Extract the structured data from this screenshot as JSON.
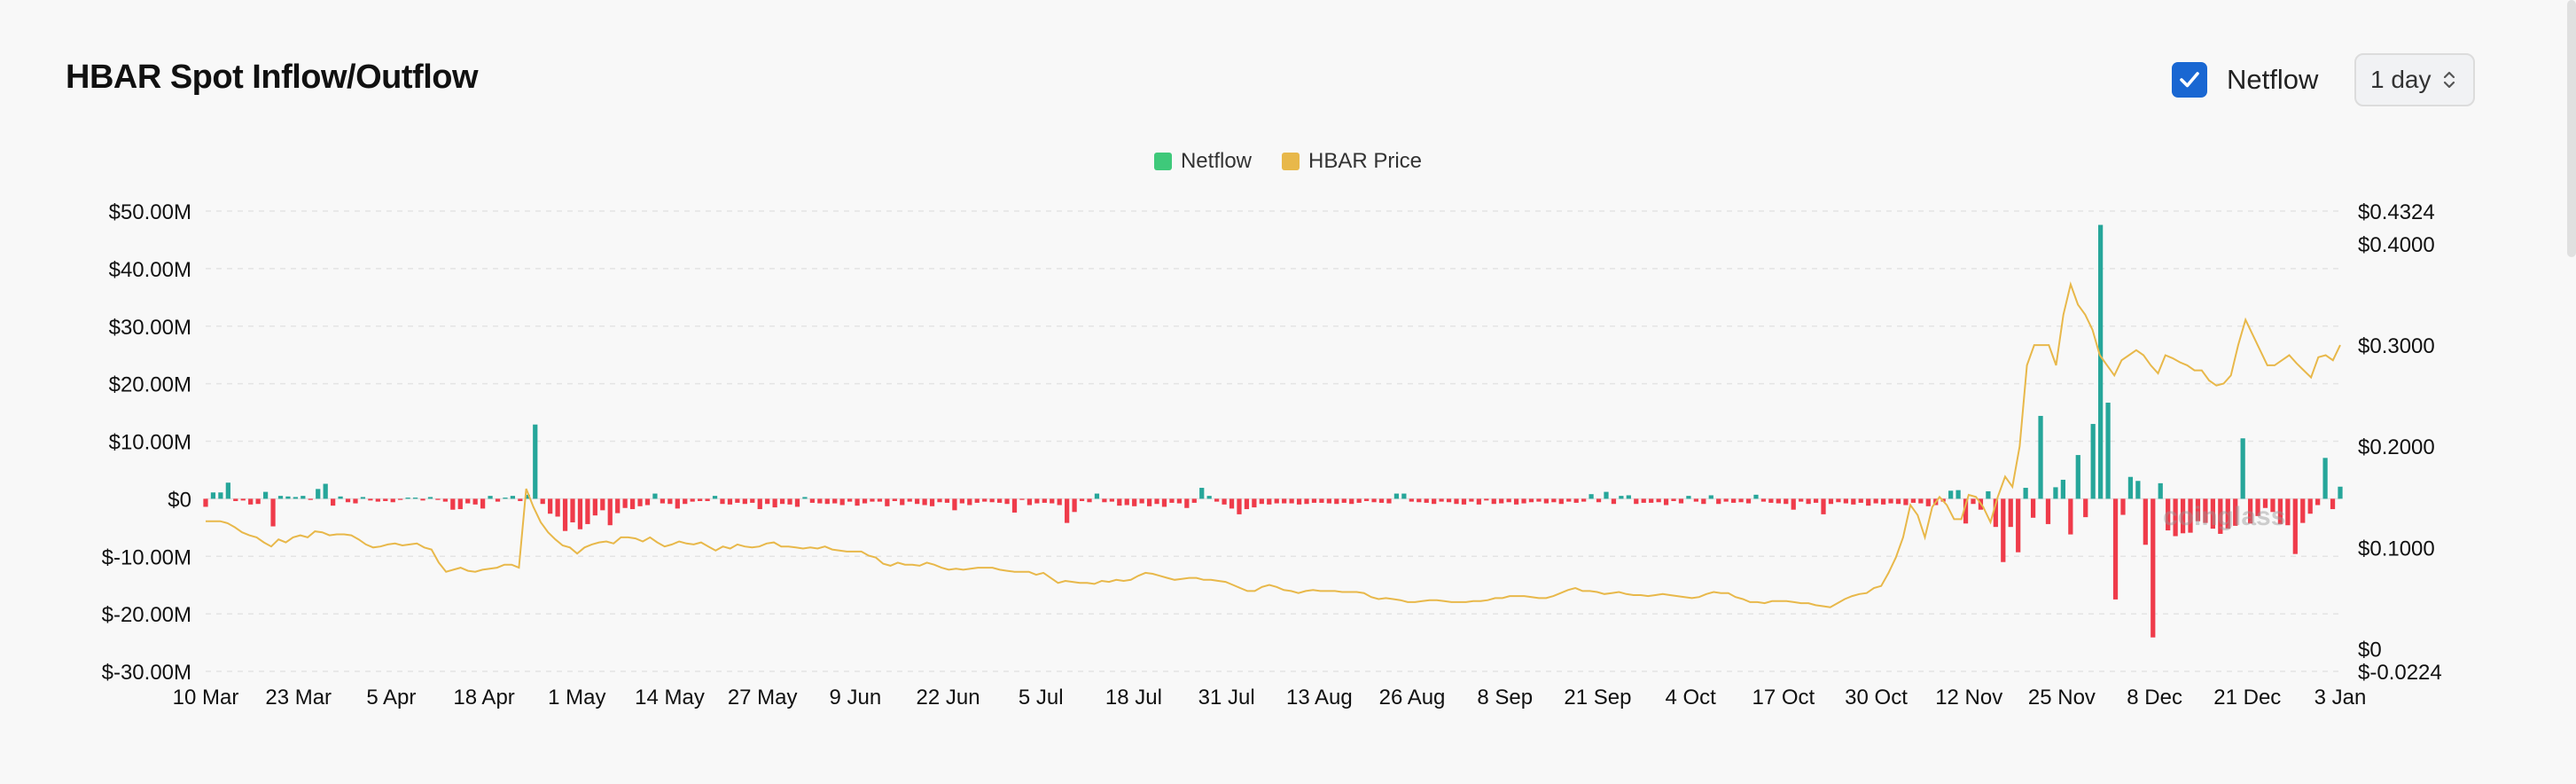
{
  "header": {
    "title": "HBAR Spot Inflow/Outflow",
    "netflow_toggle_label": "Netflow",
    "netflow_checked": true,
    "interval_value": "1 day"
  },
  "watermark": "coinglass",
  "colors": {
    "inflow": "#26a69a",
    "outflow": "#ef3b4a",
    "price_line": "#e8b84a",
    "netflow_legend": "#3ec97a",
    "price_legend": "#e8b84a"
  },
  "chart_data": {
    "type": "bar",
    "legend": [
      "Netflow",
      "HBAR Price"
    ],
    "x_tick_labels": [
      "10 Mar",
      "23 Mar",
      "5 Apr",
      "18 Apr",
      "1 May",
      "14 May",
      "27 May",
      "9 Jun",
      "22 Jun",
      "5 Jul",
      "18 Jul",
      "31 Jul",
      "13 Aug",
      "26 Aug",
      "8 Sep",
      "21 Sep",
      "4 Oct",
      "17 Oct",
      "30 Oct",
      "12 Nov",
      "25 Nov",
      "8 Dec",
      "21 Dec",
      "3 Jan"
    ],
    "y_left_tick_labels": [
      "$50.00M",
      "$40.00M",
      "$30.00M",
      "$20.00M",
      "$10.00M",
      "$0",
      "$-10.00M",
      "$-20.00M",
      "$-30.00M"
    ],
    "y_left_ticks": [
      50,
      40,
      30,
      20,
      10,
      0,
      -10,
      -20,
      -30
    ],
    "y_left_range": [
      -30,
      50
    ],
    "y_right_tick_labels": [
      "$0.4324",
      "$0.4000",
      "$0.3000",
      "$0.2000",
      "$0.1000",
      "$0",
      "$-0.0224"
    ],
    "y_right_ticks": [
      0.4324,
      0.4,
      0.3,
      0.2,
      0.1,
      0,
      -0.0224
    ],
    "y_right_range": [
      -0.0224,
      0.4324
    ],
    "series": [
      {
        "name": "Netflow",
        "units": "USD millions",
        "x_start_label": "10 Mar",
        "x_end_label": "3 Jan",
        "values": [
          -1.4,
          1.1,
          1.1,
          2.8,
          -0.4,
          -0.3,
          -1.0,
          -0.9,
          1.2,
          -4.8,
          0.5,
          0.4,
          0.3,
          0.5,
          -0.2,
          1.7,
          2.6,
          -1.2,
          0.4,
          -0.6,
          -0.8,
          0.3,
          -0.3,
          -0.5,
          -0.4,
          -0.6,
          -0.2,
          0.2,
          0.2,
          -0.3,
          0.3,
          -0.2,
          -0.5,
          -1.9,
          -1.8,
          -0.8,
          -1.0,
          -1.7,
          0.5,
          -0.5,
          0.2,
          0.5,
          -0.4,
          0.7,
          12.9,
          -0.9,
          -2.6,
          -3.1,
          -5.6,
          -4.1,
          -5.3,
          -4.4,
          -2.9,
          -2.0,
          -4.6,
          -2.5,
          -1.6,
          -1.8,
          -1.3,
          -1.1,
          0.9,
          -0.8,
          -0.9,
          -1.7,
          -0.9,
          -0.5,
          -0.4,
          -0.4,
          0.5,
          -0.9,
          -1.0,
          -0.7,
          -0.9,
          -0.7,
          -1.8,
          -0.9,
          -1.5,
          -0.9,
          -1.0,
          -1.4,
          0.3,
          -0.7,
          -0.8,
          -0.9,
          -0.8,
          -1.1,
          -0.5,
          -1.2,
          -0.8,
          -0.5,
          -0.5,
          -1.3,
          -0.4,
          -1.1,
          -0.5,
          -0.9,
          -1.1,
          -1.3,
          -0.6,
          -0.7,
          -2.0,
          -0.8,
          -1.1,
          -0.7,
          -0.5,
          -0.6,
          -0.7,
          -0.9,
          -2.4,
          -0.2,
          -1.1,
          -0.8,
          -0.7,
          -0.8,
          -1.1,
          -4.2,
          -2.3,
          -0.4,
          -0.6,
          0.9,
          -0.6,
          -0.5,
          -1.2,
          -1.1,
          -1.3,
          -0.8,
          -1.3,
          -0.9,
          -1.4,
          -0.7,
          -0.8,
          -1.6,
          -0.7,
          1.9,
          0.5,
          -0.5,
          -1.0,
          -1.7,
          -2.7,
          -1.8,
          -1.5,
          -0.9,
          -1.0,
          -0.8,
          -0.8,
          -0.8,
          -1.0,
          -0.9,
          -0.7,
          -0.7,
          -0.8,
          -0.9,
          -0.7,
          -0.9,
          -0.7,
          -0.4,
          -0.6,
          -0.7,
          -0.8,
          0.9,
          0.9,
          -0.5,
          -0.6,
          -0.7,
          -0.9,
          -0.5,
          -0.6,
          -0.9,
          -1.0,
          -0.5,
          -1.0,
          -0.3,
          -0.9,
          -0.8,
          -0.6,
          -1.0,
          -0.8,
          -0.6,
          -0.5,
          -0.8,
          -0.6,
          -0.9,
          -0.5,
          -0.7,
          -0.5,
          0.8,
          -0.6,
          1.2,
          -0.9,
          0.5,
          0.6,
          -0.9,
          -0.7,
          -0.7,
          -0.6,
          -1.1,
          -0.4,
          -0.8,
          0.5,
          -0.5,
          -0.9,
          0.6,
          -0.9,
          -0.5,
          -0.7,
          -0.6,
          -0.8,
          0.7,
          -0.5,
          -0.7,
          -0.8,
          -0.9,
          -1.9,
          -0.5,
          -0.9,
          -0.7,
          -2.7,
          -0.9,
          -0.6,
          -0.8,
          -1.0,
          -0.7,
          -1.2,
          -0.8,
          -1.0,
          -0.8,
          -0.9,
          -1.1,
          -0.7,
          -0.8,
          -1.3,
          -1.1,
          -0.5,
          1.4,
          1.5,
          -4.3,
          -0.9,
          -1.9,
          1.3,
          -4.9,
          -11.0,
          -4.9,
          -9.3,
          1.9,
          -3.3,
          14.4,
          -4.4,
          2.0,
          3.3,
          -6.2,
          7.6,
          -3.2,
          13.0,
          47.6,
          16.7,
          -17.5,
          -2.8,
          3.8,
          3.1,
          -8.0,
          -24.1,
          2.7,
          -5.5,
          -6.5,
          -6.0,
          -5.9,
          -3.9,
          -4.2,
          -5.2,
          -6.1,
          -5.2,
          -4.7,
          10.5,
          -4.3,
          -3.0,
          -1.6,
          -2.3,
          -4.4,
          -4.6,
          -9.6,
          -4.2,
          -2.6,
          -1.1,
          7.1,
          -1.8,
          2.1
        ]
      },
      {
        "name": "HBAR Price",
        "units": "USD",
        "x_start_label": "10 Mar",
        "x_end_label": "3 Jan",
        "values": [
          0.126,
          0.126,
          0.126,
          0.124,
          0.12,
          0.115,
          0.112,
          0.11,
          0.105,
          0.101,
          0.108,
          0.105,
          0.11,
          0.112,
          0.11,
          0.116,
          0.115,
          0.112,
          0.113,
          0.113,
          0.112,
          0.108,
          0.103,
          0.1,
          0.101,
          0.103,
          0.104,
          0.102,
          0.103,
          0.104,
          0.1,
          0.098,
          0.085,
          0.076,
          0.078,
          0.08,
          0.077,
          0.076,
          0.078,
          0.079,
          0.08,
          0.083,
          0.083,
          0.08,
          0.158,
          0.14,
          0.125,
          0.115,
          0.108,
          0.102,
          0.1,
          0.094,
          0.1,
          0.103,
          0.105,
          0.106,
          0.104,
          0.11,
          0.11,
          0.109,
          0.106,
          0.11,
          0.105,
          0.101,
          0.103,
          0.106,
          0.104,
          0.103,
          0.105,
          0.101,
          0.097,
          0.101,
          0.099,
          0.103,
          0.101,
          0.1,
          0.101,
          0.104,
          0.105,
          0.101,
          0.101,
          0.1,
          0.099,
          0.1,
          0.099,
          0.101,
          0.098,
          0.097,
          0.096,
          0.096,
          0.096,
          0.092,
          0.09,
          0.084,
          0.082,
          0.085,
          0.083,
          0.083,
          0.082,
          0.085,
          0.083,
          0.08,
          0.078,
          0.079,
          0.078,
          0.079,
          0.08,
          0.08,
          0.08,
          0.078,
          0.077,
          0.076,
          0.076,
          0.076,
          0.073,
          0.075,
          0.07,
          0.065,
          0.067,
          0.066,
          0.065,
          0.065,
          0.064,
          0.067,
          0.066,
          0.068,
          0.067,
          0.068,
          0.072,
          0.075,
          0.074,
          0.072,
          0.07,
          0.068,
          0.069,
          0.07,
          0.07,
          0.068,
          0.068,
          0.067,
          0.066,
          0.063,
          0.06,
          0.057,
          0.057,
          0.061,
          0.063,
          0.061,
          0.058,
          0.057,
          0.055,
          0.057,
          0.058,
          0.057,
          0.057,
          0.057,
          0.056,
          0.056,
          0.056,
          0.055,
          0.051,
          0.049,
          0.05,
          0.049,
          0.048,
          0.046,
          0.046,
          0.047,
          0.048,
          0.048,
          0.047,
          0.046,
          0.046,
          0.046,
          0.047,
          0.047,
          0.048,
          0.05,
          0.05,
          0.052,
          0.052,
          0.052,
          0.051,
          0.05,
          0.05,
          0.052,
          0.055,
          0.058,
          0.06,
          0.057,
          0.057,
          0.056,
          0.054,
          0.055,
          0.056,
          0.054,
          0.053,
          0.053,
          0.052,
          0.053,
          0.054,
          0.053,
          0.052,
          0.051,
          0.05,
          0.051,
          0.054,
          0.056,
          0.055,
          0.055,
          0.051,
          0.049,
          0.046,
          0.046,
          0.045,
          0.047,
          0.047,
          0.047,
          0.046,
          0.045,
          0.045,
          0.043,
          0.042,
          0.041,
          0.045,
          0.049,
          0.052,
          0.054,
          0.055,
          0.06,
          0.062,
          0.075,
          0.09,
          0.11,
          0.142,
          0.132,
          0.11,
          0.14,
          0.15,
          0.142,
          0.128,
          0.128,
          0.152,
          0.15,
          0.14,
          0.125,
          0.15,
          0.17,
          0.16,
          0.2,
          0.28,
          0.3,
          0.3,
          0.3,
          0.28,
          0.33,
          0.36,
          0.34,
          0.33,
          0.315,
          0.29,
          0.28,
          0.27,
          0.285,
          0.29,
          0.295,
          0.29,
          0.28,
          0.272,
          0.29,
          0.287,
          0.283,
          0.28,
          0.275,
          0.275,
          0.265,
          0.26,
          0.262,
          0.27,
          0.3,
          0.325,
          0.31,
          0.295,
          0.28,
          0.28,
          0.285,
          0.29,
          0.282,
          0.275,
          0.268,
          0.288,
          0.29,
          0.285,
          0.3
        ]
      }
    ]
  }
}
